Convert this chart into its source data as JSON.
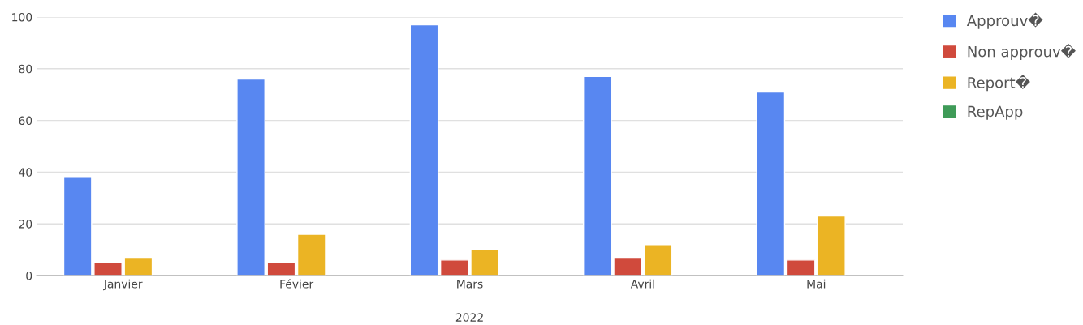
{
  "chart_data": {
    "type": "bar",
    "xlabel": "2022",
    "categories": [
      "Janvier",
      "Févier",
      "Mars",
      "Avril",
      "Mai"
    ],
    "series": [
      {
        "name": "Approuv�",
        "color": "#5887f1",
        "values": [
          38,
          76,
          97,
          77,
          71
        ]
      },
      {
        "name": "Non approuv�",
        "color": "#d04a3c",
        "values": [
          5,
          5,
          6,
          7,
          6
        ]
      },
      {
        "name": "Report�",
        "color": "#ebb424",
        "values": [
          7,
          16,
          10,
          12,
          23
        ]
      },
      {
        "name": "RepApp",
        "color": "#3f9b58",
        "values": [
          null,
          null,
          null,
          null,
          null
        ]
      }
    ],
    "ylim": [
      0,
      100
    ],
    "yticks": [
      0,
      20,
      40,
      60,
      80,
      100
    ],
    "grid": "y",
    "legend": "right"
  }
}
